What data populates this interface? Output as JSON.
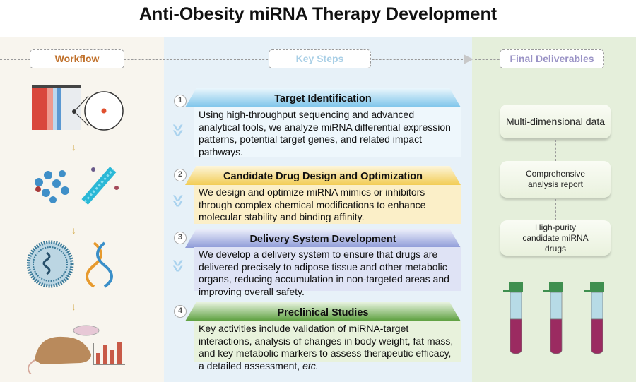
{
  "title": "Anti-Obesity miRNA Therapy Development",
  "columns": {
    "workflow": "Workflow",
    "key_steps": "Key Steps",
    "final": "Final Deliverables"
  },
  "colors": {
    "workflow": "#c0702a",
    "key_steps": "#a9cfe6",
    "final": "#9a93c6",
    "step1": "#7cc4ea",
    "step2": "#f2cc55",
    "step3": "#8e9bd8",
    "step4": "#5a9e3c"
  },
  "steps": [
    {
      "num": "1",
      "title": "Target Identification",
      "text": "Using high-throughput sequencing and advanced analytical tools, we analyze miRNA differential expression patterns, potential target genes, and related impact pathways."
    },
    {
      "num": "2",
      "title": "Candidate Drug Design and Optimization",
      "text": "We design and optimize miRNA mimics or inhibitors through complex chemical modifications to enhance molecular stability and binding affinity."
    },
    {
      "num": "3",
      "title": "Delivery System Development",
      "text": "We develop a delivery system to ensure that drugs are delivered precisely to adipose tissue and other metabolic organs, reducing accumulation in non-targeted areas and improving overall safety."
    },
    {
      "num": "4",
      "title": "Preclinical Studies",
      "text": "Key activities include validation of miRNA-target interactions, analysis of changes in body weight, fat mass, and key metabolic markers to assess therapeutic efficacy, a detailed assessment, ",
      "text_italic": "etc."
    }
  ],
  "deliverables": [
    "Multi-dimensional data",
    "Comprehensive analysis report",
    "High-purity candidate miRNA drugs"
  ],
  "icons": [
    "heatmap-network-icon",
    "molecule-rna-icon",
    "liposome-dna-icon",
    "mouse-chart-icon",
    "test-tube-icon"
  ]
}
